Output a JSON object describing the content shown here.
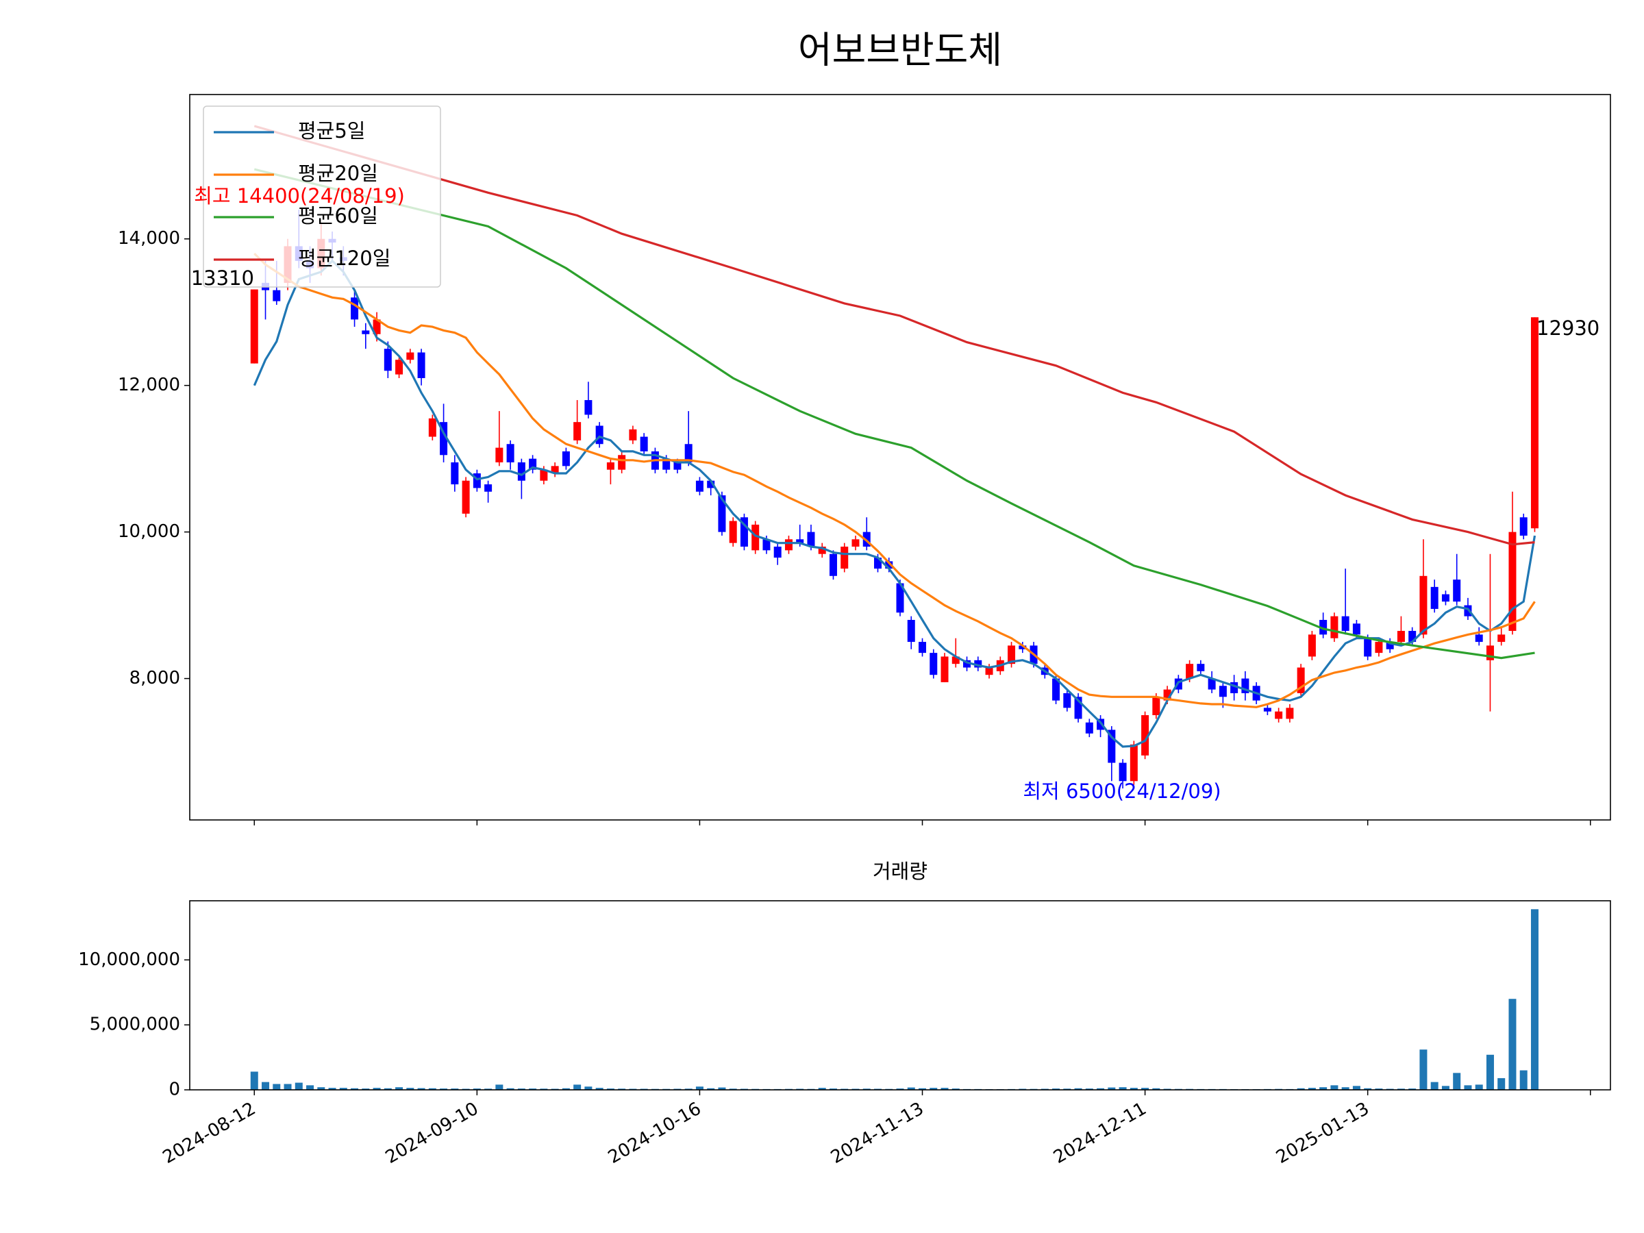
{
  "chart_data": [
    {
      "type": "candlestick",
      "title": "어보브반도체",
      "open": [
        12300,
        13400,
        13300,
        13400,
        13900,
        13700,
        13600,
        14000,
        13750,
        13200,
        12750,
        12700,
        12500,
        12150,
        12350,
        12450,
        11300,
        11500,
        10950,
        10250,
        10800,
        10650,
        10950,
        11200,
        10950,
        11000,
        10700,
        10800,
        11100,
        11250,
        11800,
        11450,
        10850,
        10850,
        11250,
        11300,
        11100,
        11000,
        10950,
        11200,
        10700,
        10700,
        10500,
        9850,
        10200,
        9750,
        9900,
        9800,
        9750,
        9900,
        10000,
        9700,
        9700,
        9500,
        9800,
        10000,
        9650,
        9600,
        9300,
        8800,
        8500,
        8350,
        7950,
        8200,
        8250,
        8250,
        8050,
        8100,
        8200,
        8450,
        8450,
        8150,
        8000,
        7800,
        7750,
        7400,
        7450,
        7300,
        6850,
        6600,
        6950,
        7500,
        7700,
        8000,
        8000,
        8200,
        8000,
        7900,
        7950,
        8000,
        7900,
        7600,
        7450,
        7450,
        7800,
        8300,
        8800,
        8550,
        8850,
        8750,
        8550,
        8350,
        8500,
        8500,
        8650,
        8600,
        9250,
        9150,
        9350,
        9000,
        8600,
        8250,
        8500,
        8650,
        10200,
        10050
      ],
      "high": [
        13310,
        13700,
        13700,
        14000,
        14400,
        13900,
        14200,
        14100,
        13900,
        13300,
        12850,
        13000,
        12600,
        12400,
        12500,
        12500,
        11600,
        11750,
        11050,
        10750,
        10850,
        10700,
        11650,
        11250,
        11000,
        11050,
        10900,
        10950,
        11150,
        11800,
        12050,
        11500,
        11000,
        11100,
        11450,
        11350,
        11150,
        11050,
        11000,
        11650,
        10750,
        10650,
        10550,
        10200,
        10250,
        10150,
        9950,
        9850,
        9950,
        10100,
        10100,
        9850,
        9750,
        9850,
        9950,
        10200,
        9700,
        9650,
        9350,
        8850,
        8550,
        8400,
        8350,
        8550,
        8300,
        8300,
        8200,
        8300,
        8500,
        8500,
        8500,
        8200,
        8050,
        7850,
        7800,
        7450,
        7500,
        7350,
        6900,
        7150,
        7550,
        7800,
        7900,
        8050,
        8250,
        8250,
        8100,
        7950,
        8050,
        8100,
        7950,
        7650,
        7600,
        7650,
        8200,
        8650,
        8900,
        8900,
        9500,
        8800,
        8600,
        8550,
        8550,
        8850,
        8700,
        9900,
        9350,
        9200,
        9700,
        9100,
        8700,
        9700,
        8700,
        10550,
        10250,
        12930
      ],
      "low": [
        12300,
        12900,
        13100,
        13300,
        13600,
        13400,
        13500,
        13700,
        13500,
        12800,
        12500,
        12600,
        12100,
        12100,
        12300,
        12000,
        11250,
        10950,
        10550,
        10200,
        10550,
        10400,
        10900,
        10850,
        10450,
        10800,
        10650,
        10750,
        10850,
        11200,
        11550,
        11150,
        10650,
        10800,
        11200,
        11050,
        10800,
        10800,
        10800,
        10900,
        10500,
        10500,
        9950,
        9800,
        9750,
        9700,
        9700,
        9550,
        9700,
        9800,
        9750,
        9650,
        9350,
        9450,
        9750,
        9750,
        9450,
        9450,
        8850,
        8400,
        8300,
        8000,
        7950,
        8150,
        8100,
        8100,
        8000,
        8050,
        8150,
        8350,
        8150,
        8000,
        7650,
        7550,
        7400,
        7200,
        7200,
        6600,
        6500,
        6550,
        6900,
        7450,
        7650,
        7800,
        7950,
        8050,
        7800,
        7600,
        7700,
        7700,
        7650,
        7500,
        7400,
        7400,
        7750,
        8250,
        8550,
        8500,
        8600,
        8550,
        8250,
        8300,
        8350,
        8450,
        8450,
        8550,
        8900,
        9000,
        9000,
        8800,
        8450,
        7550,
        8450,
        8600,
        9900,
        10000
      ],
      "close": [
        13310,
        13300,
        13150,
        13900,
        13700,
        13600,
        14000,
        13950,
        13700,
        12900,
        12700,
        12900,
        12200,
        12350,
        12450,
        12100,
        11550,
        11050,
        10650,
        10700,
        10600,
        10550,
        11150,
        10950,
        10700,
        10850,
        10850,
        10900,
        10900,
        11500,
        11600,
        11200,
        10950,
        11050,
        11400,
        11100,
        10850,
        10850,
        10850,
        10950,
        10550,
        10600,
        10000,
        10150,
        9800,
        10100,
        9750,
        9650,
        9900,
        9850,
        9800,
        9800,
        9400,
        9800,
        9900,
        9800,
        9500,
        9500,
        8900,
        8500,
        8350,
        8050,
        8300,
        8300,
        8150,
        8150,
        8150,
        8250,
        8450,
        8400,
        8200,
        8050,
        7700,
        7600,
        7450,
        7250,
        7300,
        6850,
        6600,
        7100,
        7500,
        7750,
        7850,
        7850,
        8200,
        8100,
        7850,
        7750,
        7800,
        7800,
        7700,
        7550,
        7550,
        7600,
        8150,
        8600,
        8600,
        8850,
        8650,
        8600,
        8300,
        8500,
        8400,
        8650,
        8500,
        9400,
        8950,
        9050,
        9050,
        8850,
        8500,
        8450,
        8600,
        10000,
        9950,
        12930
      ],
      "up_color": "#ff0000",
      "down_color": "#0000ff",
      "series": [
        {
          "name": "평균5일",
          "color": "#1f77b4",
          "values": [
            12000,
            12350,
            12600,
            13100,
            13450,
            13500,
            13550,
            13700,
            13550,
            13300,
            12950,
            12650,
            12550,
            12400,
            12200,
            11900,
            11650,
            11350,
            11100,
            10850,
            10720,
            10750,
            10830,
            10830,
            10780,
            10880,
            10850,
            10800,
            10800,
            10950,
            11150,
            11300,
            11250,
            11100,
            11100,
            11050,
            11050,
            11000,
            10950,
            10950,
            10850,
            10700,
            10450,
            10250,
            10100,
            9950,
            9900,
            9850,
            9850,
            9850,
            9800,
            9780,
            9720,
            9700,
            9700,
            9700,
            9650,
            9500,
            9300,
            9050,
            8800,
            8550,
            8400,
            8300,
            8220,
            8180,
            8150,
            8180,
            8230,
            8250,
            8200,
            8100,
            8000,
            7850,
            7700,
            7550,
            7400,
            7200,
            7070,
            7080,
            7150,
            7400,
            7700,
            7950,
            8000,
            8050,
            8000,
            7950,
            7900,
            7850,
            7800,
            7750,
            7720,
            7700,
            7750,
            7900,
            8100,
            8300,
            8480,
            8550,
            8550,
            8550,
            8480,
            8450,
            8500,
            8650,
            8750,
            8900,
            8980,
            8950,
            8750,
            8650,
            8750,
            8950,
            9050,
            9950
          ]
        },
        {
          "name": "평균20일",
          "color": "#ff7f0e",
          "values": [
            13800,
            13650,
            13550,
            13450,
            13350,
            13300,
            13250,
            13200,
            13180,
            13100,
            13000,
            12900,
            12800,
            12750,
            12720,
            12820,
            12800,
            12750,
            12720,
            12650,
            12450,
            12300,
            12150,
            11950,
            11750,
            11550,
            11400,
            11300,
            11200,
            11150,
            11100,
            11050,
            11000,
            10980,
            10980,
            10960,
            10980,
            10980,
            10980,
            10980,
            10960,
            10940,
            10880,
            10820,
            10780,
            10700,
            10620,
            10550,
            10470,
            10400,
            10330,
            10250,
            10180,
            10100,
            10000,
            9880,
            9740,
            9580,
            9420,
            9300,
            9200,
            9100,
            9000,
            8920,
            8850,
            8780,
            8700,
            8620,
            8550,
            8450,
            8330,
            8200,
            8050,
            7950,
            7850,
            7780,
            7760,
            7750,
            7750,
            7750,
            7750,
            7750,
            7720,
            7700,
            7680,
            7660,
            7650,
            7650,
            7630,
            7620,
            7610,
            7650,
            7700,
            7780,
            7880,
            7980,
            8030,
            8080,
            8110,
            8150,
            8180,
            8220,
            8280,
            8330,
            8380,
            8430,
            8480,
            8520,
            8560,
            8600,
            8630,
            8660,
            8700,
            8760,
            8820,
            9050
          ]
        },
        {
          "name": "평균60일",
          "color": "#2ca02c",
          "x": [
            0,
            21,
            28,
            33,
            39,
            43,
            49,
            54,
            59,
            64,
            68,
            75,
            79,
            85,
            91,
            96,
            101,
            105,
            112,
            115
          ],
          "values": [
            14950,
            14170,
            13600,
            13100,
            12500,
            12100,
            11650,
            11340,
            11150,
            10700,
            10390,
            9860,
            9540,
            9280,
            8990,
            8680,
            8520,
            8430,
            8280,
            8350
          ]
        },
        {
          "name": "평균120일",
          "color": "#d62728",
          "x": [
            0,
            21,
            29,
            33,
            43,
            53,
            58,
            64,
            72,
            78,
            81,
            88,
            94,
            98,
            104,
            109,
            113,
            115
          ],
          "values": [
            15540,
            14630,
            14320,
            14070,
            13600,
            13120,
            12950,
            12590,
            12270,
            11900,
            11770,
            11370,
            10790,
            10500,
            10170,
            10000,
            9830,
            9860
          ]
        }
      ],
      "legend": "upper left",
      "xlim": [
        -5.8,
        121.8
      ],
      "xticks": [
        0,
        20,
        40,
        60,
        80,
        100,
        120
      ],
      "ylim": [
        6070,
        15970
      ],
      "yticks": [
        {
          "value": 8000,
          "label": "8,000"
        },
        {
          "value": 10000,
          "label": "10,000"
        },
        {
          "value": 12000,
          "label": "12,000"
        },
        {
          "value": 14000,
          "label": "14,000"
        }
      ],
      "annotations": [
        "최고 14400(24/08/19)",
        "최저 6500(24/12/09)",
        "13310",
        "12930"
      ]
    },
    {
      "type": "bar",
      "title": "거래량",
      "color": "#1f77b4",
      "values": [
        1400000,
        600000,
        450000,
        450000,
        550000,
        350000,
        200000,
        150000,
        150000,
        120000,
        100000,
        150000,
        120000,
        200000,
        150000,
        130000,
        120000,
        100000,
        100000,
        80000,
        100000,
        90000,
        400000,
        120000,
        100000,
        100000,
        90000,
        80000,
        120000,
        400000,
        250000,
        150000,
        100000,
        90000,
        80000,
        80000,
        70000,
        70000,
        80000,
        90000,
        250000,
        120000,
        180000,
        90000,
        80000,
        70000,
        60000,
        60000,
        70000,
        80000,
        70000,
        150000,
        100000,
        80000,
        80000,
        90000,
        80000,
        70000,
        100000,
        180000,
        120000,
        150000,
        150000,
        100000,
        60000,
        60000,
        50000,
        50000,
        60000,
        80000,
        70000,
        80000,
        100000,
        90000,
        120000,
        100000,
        120000,
        180000,
        200000,
        150000,
        150000,
        120000,
        80000,
        70000,
        70000,
        60000,
        60000,
        60000,
        50000,
        50000,
        50000,
        60000,
        70000,
        60000,
        120000,
        150000,
        200000,
        350000,
        200000,
        300000,
        120000,
        100000,
        80000,
        90000,
        100000,
        3100000,
        600000,
        300000,
        1300000,
        350000,
        400000,
        2700000,
        900000,
        7000000,
        1500000,
        13900000
      ],
      "xlim": [
        -5.8,
        121.8
      ],
      "xticks": [
        {
          "value": 0,
          "label": "2024-08-12"
        },
        {
          "value": 20,
          "label": "2024-09-10"
        },
        {
          "value": 40,
          "label": "2024-10-16"
        },
        {
          "value": 60,
          "label": "2024-11-13"
        },
        {
          "value": 80,
          "label": "2024-12-11"
        },
        {
          "value": 100,
          "label": "2025-01-13"
        },
        120
      ],
      "ylim": [
        0,
        14550000
      ],
      "yticks": [
        0,
        {
          "value": 5000000,
          "label": "5,000,000"
        },
        {
          "value": 10000000,
          "label": "10,000,000"
        }
      ]
    }
  ]
}
